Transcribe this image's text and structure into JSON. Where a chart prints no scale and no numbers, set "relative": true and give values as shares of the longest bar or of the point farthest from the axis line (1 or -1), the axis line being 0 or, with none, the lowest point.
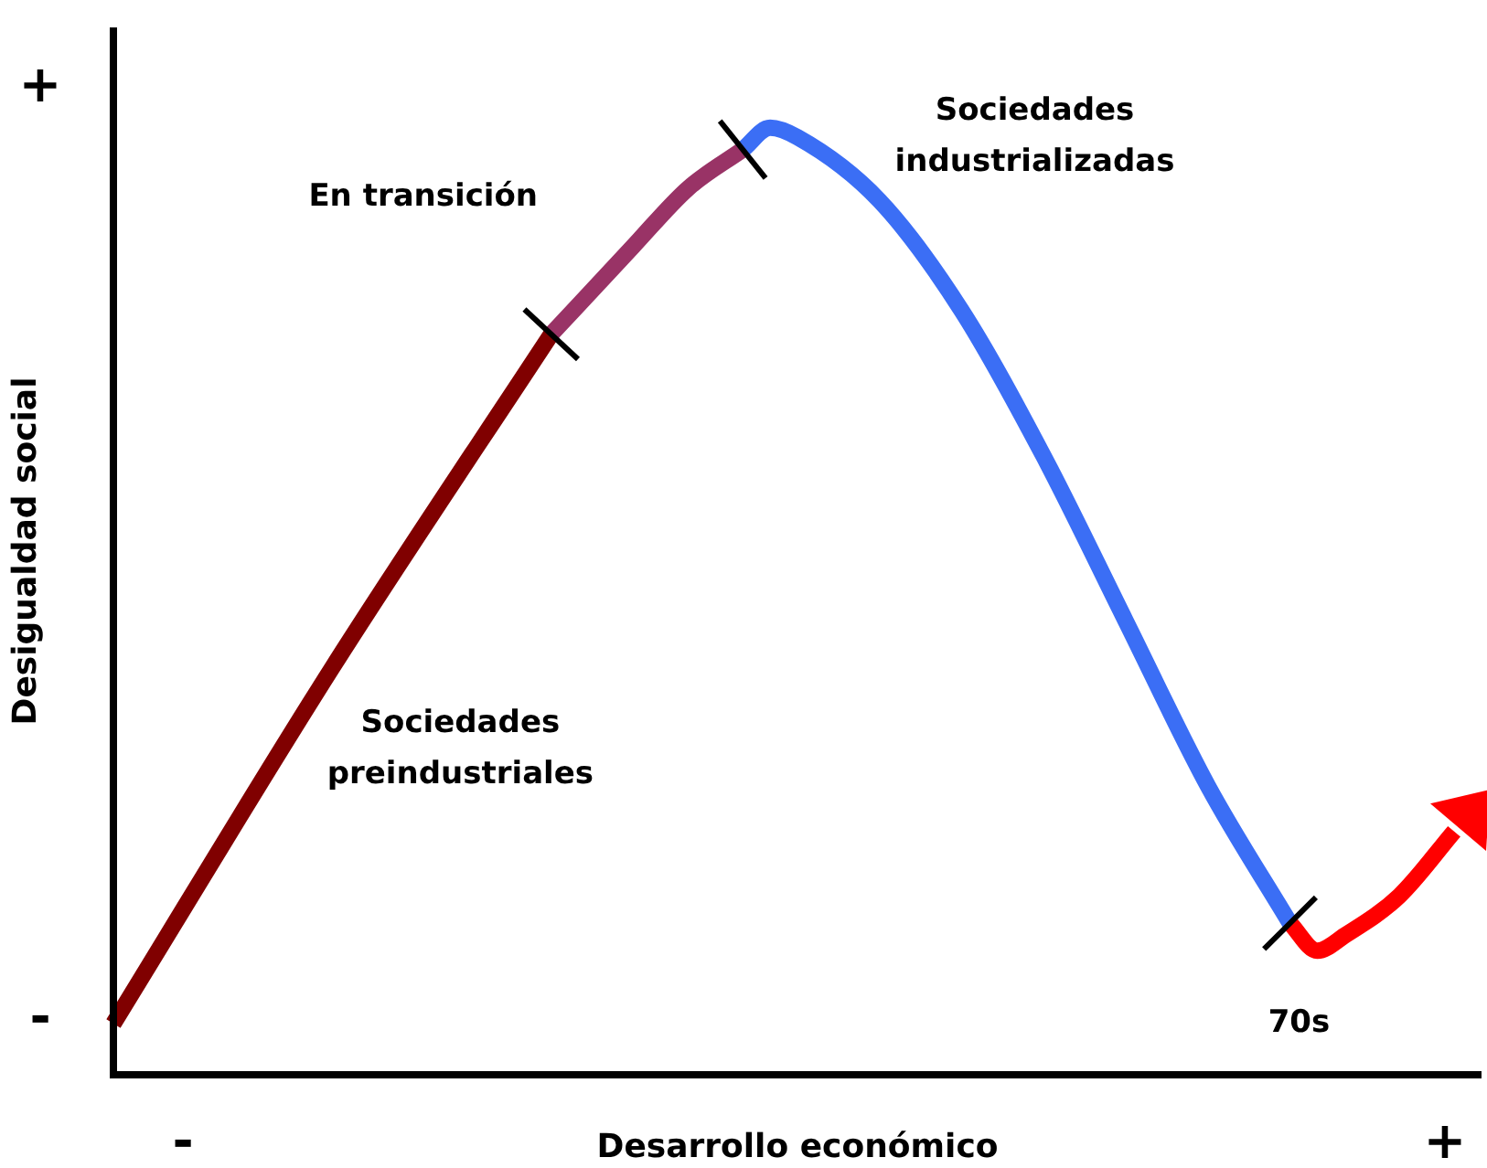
{
  "chart_data": {
    "type": "line",
    "relative": true,
    "xlabel": "Desarrollo económico",
    "ylabel": "Desigualdad social",
    "categories": [
      null,
      null,
      null,
      null,
      null,
      null,
      null,
      null,
      null,
      null,
      null,
      null,
      null,
      null,
      null,
      null,
      null,
      null,
      null,
      null,
      null,
      null,
      null,
      null,
      null,
      null,
      null,
      null,
      null,
      null,
      null,
      null,
      null,
      null,
      null,
      null,
      null,
      null,
      null,
      null,
      null,
      null,
      null,
      null,
      null,
      null,
      null,
      null,
      null,
      null,
      null
    ],
    "annotations": [
      "+",
      "-",
      "-",
      "+"
    ],
    "grid": false,
    "legend": false,
    "marker": "none",
    "line_style": "solid",
    "series": [
      {
        "name": "Sociedades preindustriales",
        "color": "#800000",
        "values": [
          0.054,
          null,
          null,
          null,
          null,
          null,
          null,
          null,
          0.43,
          null,
          null,
          null,
          null,
          null,
          null,
          null,
          0.782,
          null,
          null,
          null,
          null,
          null,
          null,
          null,
          null,
          null,
          null,
          null,
          null,
          null,
          null,
          null,
          null,
          null,
          null,
          null,
          null,
          null,
          null,
          null,
          null,
          null,
          null,
          null,
          null,
          null,
          null,
          null,
          null,
          null,
          null
        ]
      },
      {
        "name": "En transición",
        "color": "#993366",
        "values": [
          null,
          null,
          null,
          null,
          null,
          null,
          null,
          null,
          null,
          null,
          null,
          null,
          null,
          null,
          null,
          null,
          0.782,
          null,
          null,
          0.875,
          null,
          0.936,
          null,
          0.977,
          null,
          null,
          null,
          null,
          null,
          null,
          null,
          null,
          null,
          null,
          null,
          null,
          null,
          null,
          null,
          null,
          null,
          null,
          null,
          null,
          null,
          null,
          null,
          null,
          null,
          null,
          null
        ]
      },
      {
        "name": "Sociedades industrializadas",
        "color": "#3b6ef5",
        "values": [
          null,
          null,
          null,
          null,
          null,
          null,
          null,
          null,
          null,
          null,
          null,
          null,
          null,
          null,
          null,
          null,
          null,
          null,
          null,
          null,
          null,
          null,
          null,
          0.977,
          1,
          0.99,
          null,
          null,
          0.923,
          null,
          null,
          0.807,
          null,
          null,
          0.653,
          null,
          null,
          0.479,
          null,
          null,
          0.305,
          null,
          null,
          0.16,
          null,
          null,
          null,
          null,
          null,
          null,
          null
        ]
      },
      {
        "name": "70s",
        "color": "#ff0000",
        "values": [
          null,
          null,
          null,
          null,
          null,
          null,
          null,
          null,
          null,
          null,
          null,
          null,
          null,
          null,
          null,
          null,
          null,
          null,
          null,
          null,
          null,
          null,
          null,
          null,
          null,
          null,
          null,
          null,
          null,
          null,
          null,
          null,
          null,
          null,
          null,
          null,
          null,
          null,
          null,
          null,
          null,
          null,
          null,
          0.16,
          0.131,
          0.147,
          null,
          0.189,
          null,
          0.257,
          null
        ]
      }
    ]
  }
}
